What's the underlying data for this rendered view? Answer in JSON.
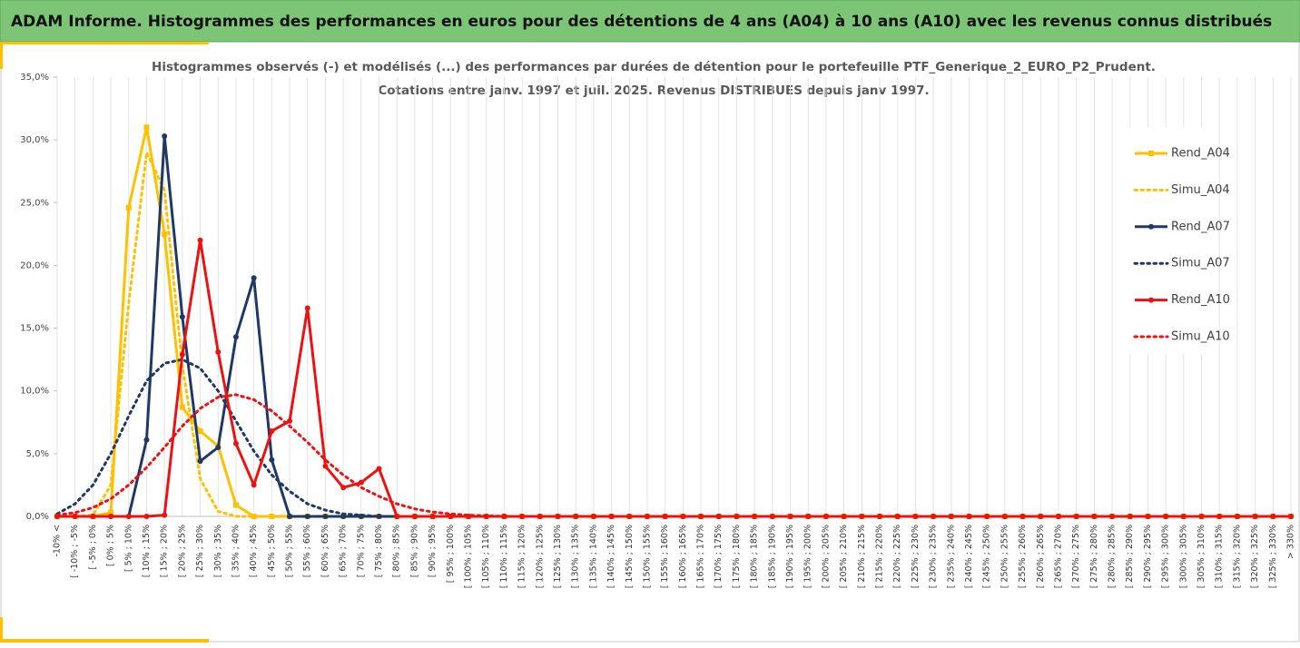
{
  "header": {
    "title": "ADAM Informe. Histogrammes des performances en euros pour des détentions de 4 ans (A04) à 10 ans (A10) avec les revenus connus distribués"
  },
  "chart_data": {
    "type": "line",
    "title": "Histogrammes observés (-) et modélisés (...) des performances par durées de détention pour le portefeuille PTF_Generique_2_EURO_P2_Prudent.",
    "subtitle": "Cotations entre janv. 1997 et juil. 2025. Revenus DISTRIBUES depuis janv 1997.",
    "categories": [
      "-10% <",
      "[ -10% ; -5%",
      "[ -5% ; 0%",
      "[ 0% ; 5%",
      "[ 5% ; 10%",
      "[ 10% ; 15%",
      "[ 15% ; 20%",
      "[ 20% ; 25%",
      "[ 25% ; 30%",
      "[ 30% ; 35%",
      "[ 35% ; 40%",
      "[ 40% ; 45%",
      "[ 45% ; 50%",
      "[ 50% ; 55%",
      "[ 55% ; 60%",
      "[ 60% ; 65%",
      "[ 65% ; 70%",
      "[ 70% ; 75%",
      "[ 75% ; 80%",
      "[ 80% ; 85%",
      "[ 85% ; 90%",
      "[ 90% ; 95%",
      "[ 95% ; 100%",
      "[ 100% ; 105%",
      "[ 105% ; 110%",
      "[ 110% ; 115%",
      "[ 115% ; 120%",
      "[ 120% ; 125%",
      "[ 125% ; 130%",
      "[ 130% ; 135%",
      "[ 135% ; 140%",
      "[ 140% ; 145%",
      "[ 145% ; 150%",
      "[ 150% ; 155%",
      "[ 155% ; 160%",
      "[ 160% ; 165%",
      "[ 165% ; 170%",
      "[ 170% ; 175%",
      "[ 175% ; 180%",
      "[ 180% ; 185%",
      "[ 185% ; 190%",
      "[ 190% ; 195%",
      "[ 195% ; 200%",
      "[ 200% ; 205%",
      "[ 205% ; 210%",
      "[ 210% ; 215%",
      "[ 215% ; 220%",
      "[ 220% ; 225%",
      "[ 225% ; 230%",
      "[ 230% ; 235%",
      "[ 235% ; 240%",
      "[ 240% ; 245%",
      "[ 245% ; 250%",
      "[ 250% ; 255%",
      "[ 255% ; 260%",
      "[ 260% ; 265%",
      "[ 265% ; 270%",
      "[ 270% ; 275%",
      "[ 275% ; 280%",
      "[ 280% ; 285%",
      "[ 285% ; 290%",
      "[ 290% ; 295%",
      "[ 295% ; 300%",
      "[ 300% ; 305%",
      "[ 305% ; 310%",
      "[ 310% ; 315%",
      "[ 315% ; 320%",
      "[ 320% ; 325%",
      "[ 325% ; 330%",
      "> 330%"
    ],
    "series": [
      {
        "name": "Rend_A04",
        "color": "#ffc000",
        "dash": "solid",
        "marker": "square",
        "values": [
          0,
          0,
          0,
          0.3,
          24.6,
          31.0,
          22.5,
          8.7,
          6.8,
          5.6,
          0.9,
          0,
          0,
          0,
          0,
          0,
          0,
          0,
          0,
          0,
          0,
          0,
          0,
          0,
          0,
          0,
          0,
          0,
          0,
          0,
          0,
          0,
          0,
          0,
          0,
          0,
          0,
          0,
          0,
          0,
          0,
          0,
          0,
          0,
          0,
          0,
          0,
          0,
          0,
          0,
          0,
          0,
          0,
          0,
          0,
          0,
          0,
          0,
          0,
          0,
          0,
          0,
          0,
          0,
          0,
          0,
          0,
          0,
          0,
          0
        ]
      },
      {
        "name": "Simu_A04",
        "color": "#ffc000",
        "dash": "dotted",
        "marker": "none",
        "values": [
          0,
          0,
          0.1,
          2.5,
          17,
          29,
          26,
          12,
          3,
          0.4,
          0,
          0,
          0,
          0,
          0,
          0,
          0,
          0,
          0,
          0,
          0,
          0,
          0,
          0,
          0,
          0,
          0,
          0,
          0,
          0,
          0,
          0,
          0,
          0,
          0,
          0,
          0,
          0,
          0,
          0,
          0,
          0,
          0,
          0,
          0,
          0,
          0,
          0,
          0,
          0,
          0,
          0,
          0,
          0,
          0,
          0,
          0,
          0,
          0,
          0,
          0,
          0,
          0,
          0,
          0,
          0,
          0,
          0,
          0,
          0
        ]
      },
      {
        "name": "Rend_A07",
        "color": "#1f3864",
        "dash": "solid",
        "marker": "circle",
        "values": [
          0,
          0,
          0,
          0,
          0,
          6.1,
          30.3,
          15.9,
          4.4,
          5.5,
          14.3,
          19.0,
          4.5,
          0,
          0,
          0,
          0,
          0,
          0,
          0,
          0,
          0,
          0,
          0,
          0,
          0,
          0,
          0,
          0,
          0,
          0,
          0,
          0,
          0,
          0,
          0,
          0,
          0,
          0,
          0,
          0,
          0,
          0,
          0,
          0,
          0,
          0,
          0,
          0,
          0,
          0,
          0,
          0,
          0,
          0,
          0,
          0,
          0,
          0,
          0,
          0,
          0,
          0,
          0,
          0,
          0,
          0,
          0,
          0,
          0
        ]
      },
      {
        "name": "Simu_A07",
        "color": "#1f3864",
        "dash": "dotted",
        "marker": "none",
        "values": [
          0.2,
          1,
          2.5,
          5,
          8,
          10.8,
          12.2,
          12.5,
          11.8,
          10,
          7.6,
          5.2,
          3.3,
          2,
          1,
          0.5,
          0.2,
          0.1,
          0,
          0,
          0,
          0,
          0,
          0,
          0,
          0,
          0,
          0,
          0,
          0,
          0,
          0,
          0,
          0,
          0,
          0,
          0,
          0,
          0,
          0,
          0,
          0,
          0,
          0,
          0,
          0,
          0,
          0,
          0,
          0,
          0,
          0,
          0,
          0,
          0,
          0,
          0,
          0,
          0,
          0,
          0,
          0,
          0,
          0,
          0,
          0,
          0,
          0,
          0,
          0
        ]
      },
      {
        "name": "Rend_A10",
        "color": "#ee1111",
        "dash": "solid",
        "marker": "circle",
        "values": [
          0,
          0,
          0,
          0,
          0,
          0,
          0.1,
          12.9,
          22.0,
          13.1,
          5.8,
          2.5,
          6.8,
          7.6,
          16.6,
          4.0,
          2.3,
          2.7,
          3.8,
          0,
          0,
          0,
          0,
          0,
          0,
          0,
          0,
          0,
          0,
          0,
          0,
          0,
          0,
          0,
          0,
          0,
          0,
          0,
          0,
          0,
          0,
          0,
          0,
          0,
          0,
          0,
          0,
          0,
          0,
          0,
          0,
          0,
          0,
          0,
          0,
          0,
          0,
          0,
          0,
          0,
          0,
          0,
          0,
          0,
          0,
          0,
          0,
          0,
          0,
          0
        ]
      },
      {
        "name": "Simu_A10",
        "color": "#ee1111",
        "dash": "dotted",
        "marker": "none",
        "values": [
          0.1,
          0.3,
          0.7,
          1.4,
          2.5,
          3.9,
          5.5,
          7.2,
          8.6,
          9.5,
          9.7,
          9.3,
          8.4,
          7.2,
          5.9,
          4.5,
          3.3,
          2.3,
          1.6,
          1.0,
          0.6,
          0.35,
          0.2,
          0.1,
          0.05,
          0,
          0,
          0,
          0,
          0,
          0,
          0,
          0,
          0,
          0,
          0,
          0,
          0,
          0,
          0,
          0,
          0,
          0,
          0,
          0,
          0,
          0,
          0,
          0,
          0,
          0,
          0,
          0,
          0,
          0,
          0,
          0,
          0,
          0,
          0,
          0,
          0,
          0,
          0,
          0,
          0,
          0,
          0,
          0,
          0
        ]
      }
    ],
    "ylim": [
      0,
      35
    ],
    "yticks": [
      {
        "value": 0,
        "label": "0,0%"
      },
      {
        "value": 5,
        "label": "5,0%"
      },
      {
        "value": 10,
        "label": "10,0%"
      },
      {
        "value": 15,
        "label": "15,0%"
      },
      {
        "value": 20,
        "label": "20,0%"
      },
      {
        "value": 25,
        "label": "25,0%"
      },
      {
        "value": 30,
        "label": "30,0%"
      },
      {
        "value": 35,
        "label": "35,0%"
      }
    ],
    "xgrid": true,
    "legend": "right"
  }
}
